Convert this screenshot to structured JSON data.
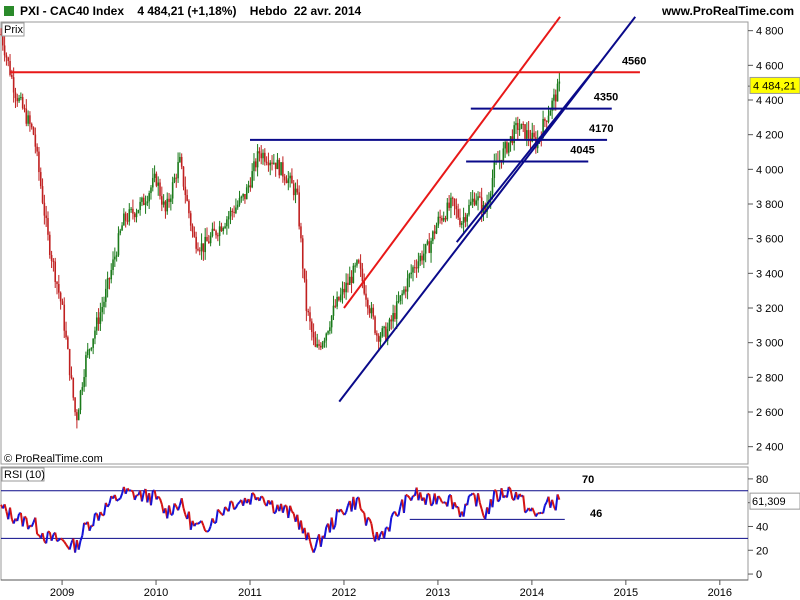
{
  "header": {
    "title": "PXI - CAC40 Index",
    "price": "4 484,21 (+1,18%)",
    "period": "Hebdo",
    "date": "22 avr. 2014",
    "brand": "www.ProRealTime.com"
  },
  "price_panel": {
    "label": "Prix",
    "watermark": "© ProRealTime.com",
    "last_value": "4 484,21"
  },
  "rsi_panel": {
    "label": "RSI (10)",
    "last_value": "61,309"
  },
  "colors": {
    "up": "#1a7a1a",
    "down": "#c02020",
    "trend_red": "#e81818",
    "trend_navy": "#0a0a8a",
    "rsi_up": "#1414d8",
    "rsi_down": "#d41414",
    "last_tag": "#ffff00"
  },
  "chart_data": [
    {
      "type": "candlestick",
      "title": "PXI - CAC40 Index",
      "x_ticks": [
        "2009",
        "2010",
        "2011",
        "2012",
        "2013",
        "2014",
        "2015",
        "2016"
      ],
      "y_ticks": [
        "4 800",
        "4 600",
        "4 400",
        "4 200",
        "4 000",
        "3 800",
        "3 600",
        "3 400",
        "3 200",
        "3 000",
        "2 800",
        "2 600",
        "2 400"
      ],
      "ylim": [
        2300,
        4850
      ],
      "xlim": [
        2008.35,
        2016.3
      ],
      "annotations": [
        "4560",
        "4350",
        "4170",
        "4045"
      ],
      "levels": [
        {
          "label": "4560",
          "value": 4560,
          "x0": 2008.45,
          "x1": 2015.15,
          "color": "red"
        },
        {
          "label": "4350",
          "value": 4350,
          "x0": 2013.35,
          "x1": 2014.85,
          "color": "navy"
        },
        {
          "label": "4170",
          "value": 4170,
          "x0": 2011.0,
          "x1": 2014.8,
          "color": "navy"
        },
        {
          "label": "4045",
          "value": 4045,
          "x0": 2013.3,
          "x1": 2014.6,
          "color": "navy"
        }
      ],
      "trendlines": [
        {
          "name": "red",
          "points": [
            [
              2012.0,
              3200
            ],
            [
              2014.3,
              4880
            ]
          ],
          "color": "red"
        },
        {
          "name": "navy lower",
          "points": [
            [
              2011.95,
              2660
            ],
            [
              2015.1,
              4880
            ]
          ],
          "color": "navy"
        },
        {
          "name": "navy upper",
          "points": [
            [
              2013.2,
              3580
            ],
            [
              2014.7,
              4600
            ]
          ],
          "color": "navy"
        }
      ],
      "series": [
        {
          "values": [
            [
              2008.35,
              4780
            ],
            [
              2008.5,
              4450
            ],
            [
              2008.7,
              4200
            ],
            [
              2008.85,
              3600
            ],
            [
              2009.0,
              3200
            ],
            [
              2009.15,
              2550
            ],
            [
              2009.25,
              2900
            ],
            [
              2009.45,
              3250
            ],
            [
              2009.65,
              3700
            ],
            [
              2009.85,
              3800
            ],
            [
              2010.0,
              3950
            ],
            [
              2010.1,
              3750
            ],
            [
              2010.25,
              4050
            ],
            [
              2010.4,
              3600
            ],
            [
              2010.5,
              3550
            ],
            [
              2010.65,
              3650
            ],
            [
              2010.8,
              3750
            ],
            [
              2010.95,
              3850
            ],
            [
              2011.1,
              4100
            ],
            [
              2011.25,
              4050
            ],
            [
              2011.4,
              3950
            ],
            [
              2011.5,
              3850
            ],
            [
              2011.6,
              3200
            ],
            [
              2011.7,
              2950
            ],
            [
              2011.8,
              3050
            ],
            [
              2011.9,
              3200
            ],
            [
              2012.0,
              3300
            ],
            [
              2012.15,
              3450
            ],
            [
              2012.25,
              3250
            ],
            [
              2012.35,
              3050
            ],
            [
              2012.45,
              3050
            ],
            [
              2012.6,
              3250
            ],
            [
              2012.75,
              3450
            ],
            [
              2012.9,
              3550
            ],
            [
              2013.0,
              3700
            ],
            [
              2013.15,
              3800
            ],
            [
              2013.25,
              3700
            ],
            [
              2013.4,
              3850
            ],
            [
              2013.5,
              3750
            ],
            [
              2013.6,
              4000
            ],
            [
              2013.75,
              4150
            ],
            [
              2013.85,
              4250
            ],
            [
              2013.95,
              4200
            ],
            [
              2014.05,
              4150
            ],
            [
              2014.15,
              4300
            ],
            [
              2014.3,
              4484
            ]
          ]
        }
      ]
    },
    {
      "type": "line",
      "title": "RSI (10)",
      "y_ticks": [
        "80",
        "60",
        "40",
        "20",
        "0"
      ],
      "ylim": [
        -5,
        90
      ],
      "annotations": [
        "70",
        "46"
      ],
      "reference_lines": [
        {
          "label": "70",
          "value": 70
        },
        {
          "label": "30",
          "value": 30
        },
        {
          "label": "46",
          "value": 46,
          "x0": 2012.7,
          "x1": 2014.35
        }
      ],
      "series": [
        {
          "name": "RSI (10)",
          "values": [
            [
              2008.35,
              55
            ],
            [
              2008.5,
              48
            ],
            [
              2008.7,
              42
            ],
            [
              2008.85,
              30
            ],
            [
              2009.0,
              28
            ],
            [
              2009.15,
              22
            ],
            [
              2009.25,
              40
            ],
            [
              2009.45,
              55
            ],
            [
              2009.65,
              68
            ],
            [
              2009.85,
              66
            ],
            [
              2010.0,
              64
            ],
            [
              2010.1,
              52
            ],
            [
              2010.25,
              60
            ],
            [
              2010.4,
              40
            ],
            [
              2010.5,
              38
            ],
            [
              2010.65,
              50
            ],
            [
              2010.8,
              60
            ],
            [
              2010.95,
              62
            ],
            [
              2011.1,
              68
            ],
            [
              2011.25,
              58
            ],
            [
              2011.4,
              52
            ],
            [
              2011.5,
              48
            ],
            [
              2011.6,
              30
            ],
            [
              2011.7,
              22
            ],
            [
              2011.8,
              35
            ],
            [
              2011.9,
              45
            ],
            [
              2012.0,
              55
            ],
            [
              2012.15,
              62
            ],
            [
              2012.25,
              42
            ],
            [
              2012.35,
              30
            ],
            [
              2012.45,
              38
            ],
            [
              2012.6,
              55
            ],
            [
              2012.75,
              68
            ],
            [
              2012.9,
              60
            ],
            [
              2013.0,
              66
            ],
            [
              2013.15,
              62
            ],
            [
              2013.25,
              52
            ],
            [
              2013.4,
              65
            ],
            [
              2013.5,
              50
            ],
            [
              2013.6,
              64
            ],
            [
              2013.75,
              70
            ],
            [
              2013.85,
              66
            ],
            [
              2013.95,
              55
            ],
            [
              2014.05,
              48
            ],
            [
              2014.15,
              58
            ],
            [
              2014.3,
              61.3
            ]
          ]
        }
      ]
    }
  ]
}
